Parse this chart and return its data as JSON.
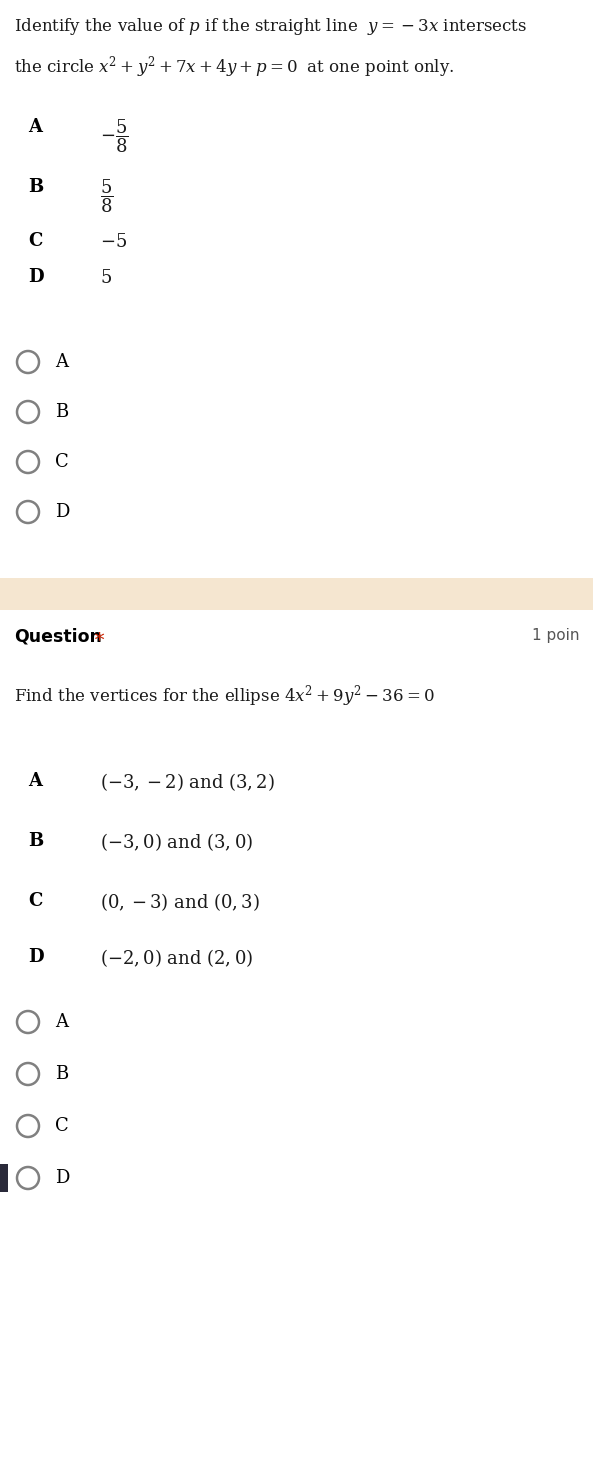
{
  "bg_color": "#ffffff",
  "separator_color": "#f5e6d0",
  "q1_line1": "Identify the value of $p$ if the straight line $\\ y=-3x$ intersects",
  "q1_line2": "the circle $x^2+y^2+7x+4y+p=0\\;$ at one point only.",
  "q1_options": [
    [
      "A",
      "$-\\dfrac{5}{8}$"
    ],
    [
      "B",
      "$\\dfrac{5}{8}$"
    ],
    [
      "C",
      "$-5$"
    ],
    [
      "D",
      "$5$"
    ]
  ],
  "q1_radios": [
    "A",
    "B",
    "C",
    "D"
  ],
  "q2_header": "Question",
  "q2_points": "1 poin",
  "q2_line1": "Find the vertices for the ellipse $4x^2+9y^2-36=0$",
  "q2_options": [
    [
      "A",
      "$(-3,-2)$ and $(3,2)$"
    ],
    [
      "B",
      "$(-3,0)$ and $(3,0)$"
    ],
    [
      "C",
      "$(0,-3)$ and $(0,3)$"
    ],
    [
      "D",
      "$(-2,0)$ and $(2,0)$"
    ]
  ],
  "q2_radios": [
    "A",
    "B",
    "C",
    "D"
  ],
  "radio_color": "#808080",
  "label_bold_color": "#000000",
  "text_color": "#1a1a1a",
  "star_color": "#cc2200",
  "points_color": "#555555",
  "dark_marker_color": "#2a2a3a"
}
